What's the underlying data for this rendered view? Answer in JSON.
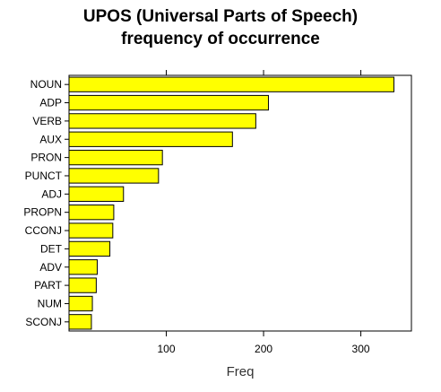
{
  "chart_data": {
    "type": "bar",
    "orientation": "horizontal",
    "title": [
      "UPOS (Universal Parts of Speech)",
      "frequency of occurrence"
    ],
    "xlabel": "Freq",
    "ylabel": "",
    "xlim": [
      0,
      352
    ],
    "xticks": [
      100,
      200,
      300
    ],
    "grid": false,
    "legend": "none",
    "bar_color": "#ffff00",
    "bar_border": "#000000",
    "categories": [
      "NOUN",
      "ADP",
      "VERB",
      "AUX",
      "PRON",
      "PUNCT",
      "ADJ",
      "PROPN",
      "CCONJ",
      "DET",
      "ADV",
      "PART",
      "NUM",
      "SCONJ"
    ],
    "values": [
      334,
      205,
      192,
      168,
      96,
      92,
      56,
      46,
      45,
      42,
      29,
      28,
      24,
      23
    ]
  }
}
